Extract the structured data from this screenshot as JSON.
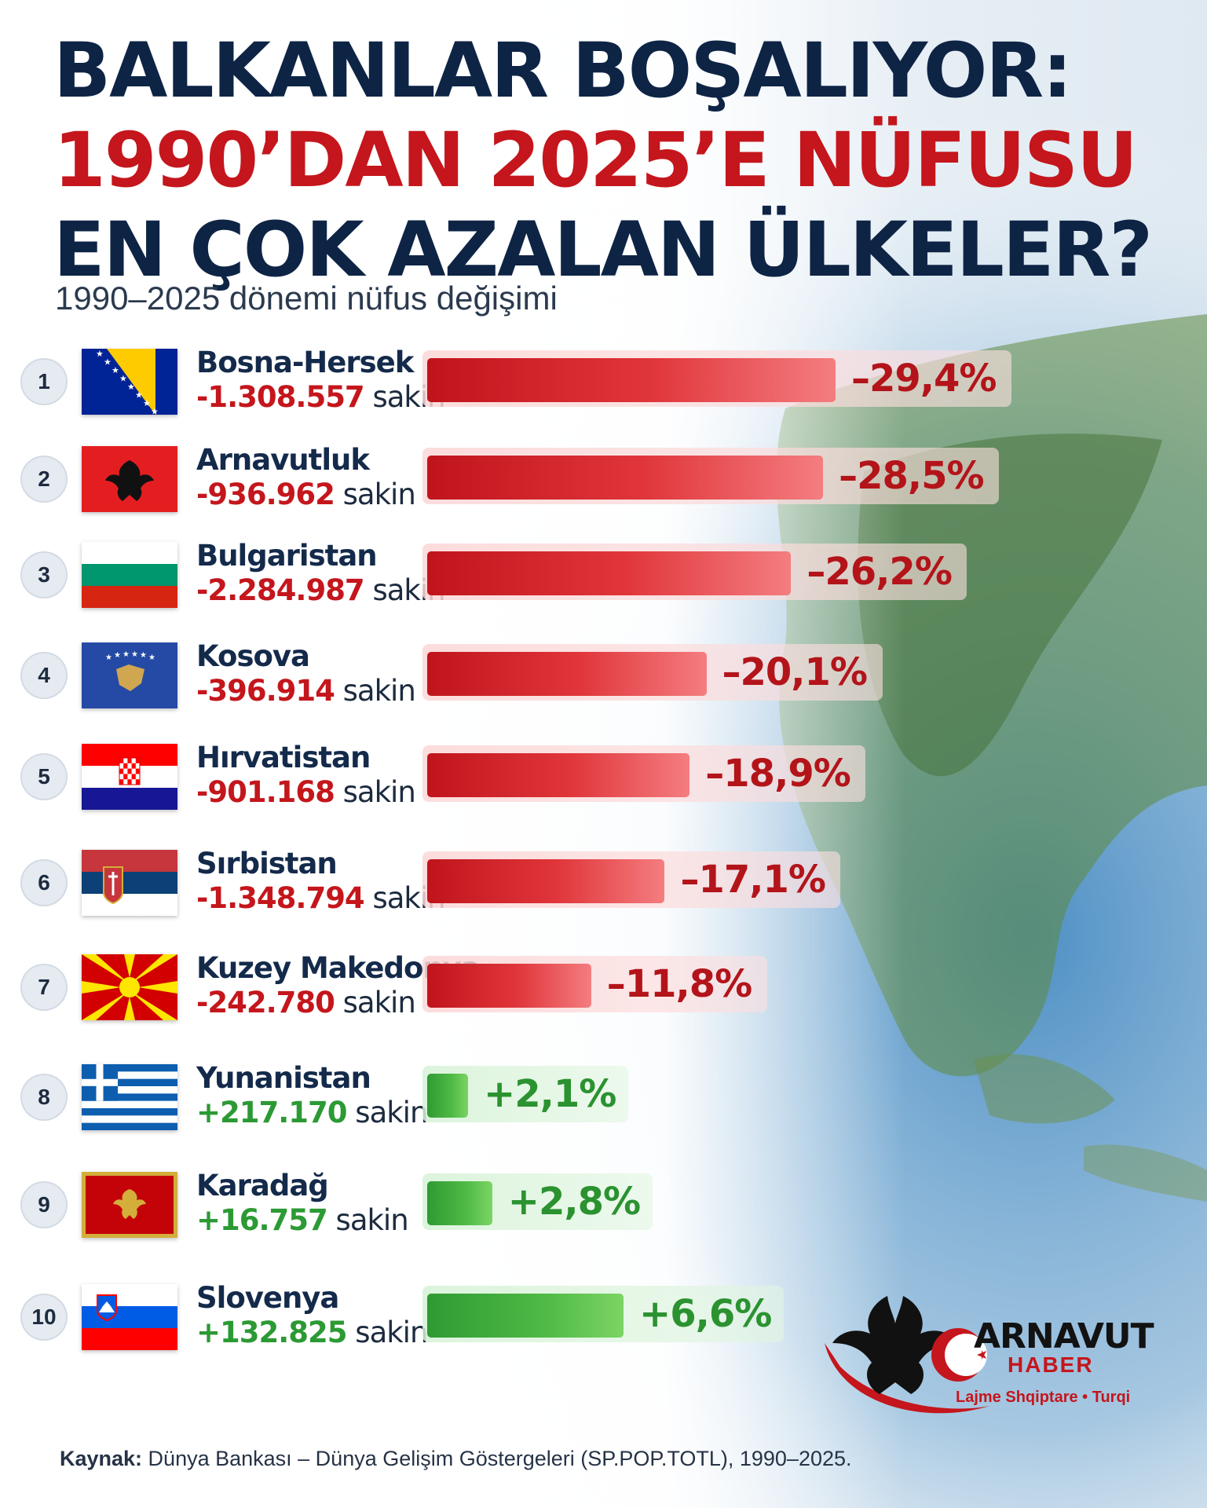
{
  "title": {
    "line1": "BALKANLAR BOŞALIYOR:",
    "line2": "1990’DAN 2025’E NÜFUSU",
    "line3": "EN ÇOK AZALAN ÜLKELER?"
  },
  "subtitle": "1990–2025 dönemi nüfus değişimi",
  "chart_data": {
    "type": "bar",
    "orientation": "horizontal",
    "unit": "%",
    "categories": [
      "Bosna-Hersek",
      "Arnavutluk",
      "Bulgaristan",
      "Kosova",
      "Hırvatistan",
      "Sırbistan",
      "Kuzey Makedonya",
      "Yunanistan",
      "Karadağ",
      "Slovenya"
    ],
    "series": [
      {
        "values": [
          -29.4,
          -28.5,
          -26.2,
          -20.1,
          -18.9,
          -17.1,
          -11.8,
          2.1,
          2.8,
          6.6
        ]
      }
    ],
    "value_labels": [
      "–29,4%",
      "–28,5%",
      "–26,2%",
      "–20,1%",
      "–18,9%",
      "–17,1%",
      "–11,8%",
      "+2,1%",
      "+2,8%",
      "+6,6%"
    ],
    "ranks": [
      "1",
      "2",
      "3",
      "4",
      "5",
      "6",
      "7",
      "8",
      "9",
      "10"
    ],
    "absolute_changes": [
      "-1.308.557",
      "-936.962",
      "-2.284.987",
      "-396.914",
      "-901.168",
      "-1.348.794",
      "-242.780",
      "+217.170",
      "+16.757",
      "+132.825"
    ],
    "absolute_suffix": "sakin",
    "colors": {
      "negative": "#d8262c",
      "positive": "#3fae3f"
    },
    "grid": false,
    "legend": "none"
  },
  "flags": [
    "bosnia-flag-icon",
    "albania-flag-icon",
    "bulgaria-flag-icon",
    "kosovo-flag-icon",
    "croatia-flag-icon",
    "serbia-flag-icon",
    "north-macedonia-flag-icon",
    "greece-flag-icon",
    "montenegro-flag-icon",
    "slovenia-flag-icon"
  ],
  "brand": {
    "name": "ARNAVUT",
    "sub": "HABER",
    "tagline": "Lajme Shqiptare • Turqi",
    "logo_icon": "double-headed-eagle-crescent-logo"
  },
  "source": {
    "label": "Kaynak:",
    "text": " Dünya Bankası – Dünya Gelişim Göstergeleri (SP.POP.TOTL), 1990–2025."
  },
  "colors": {
    "title_navy": "#0e2445",
    "title_red": "#c4161c"
  }
}
